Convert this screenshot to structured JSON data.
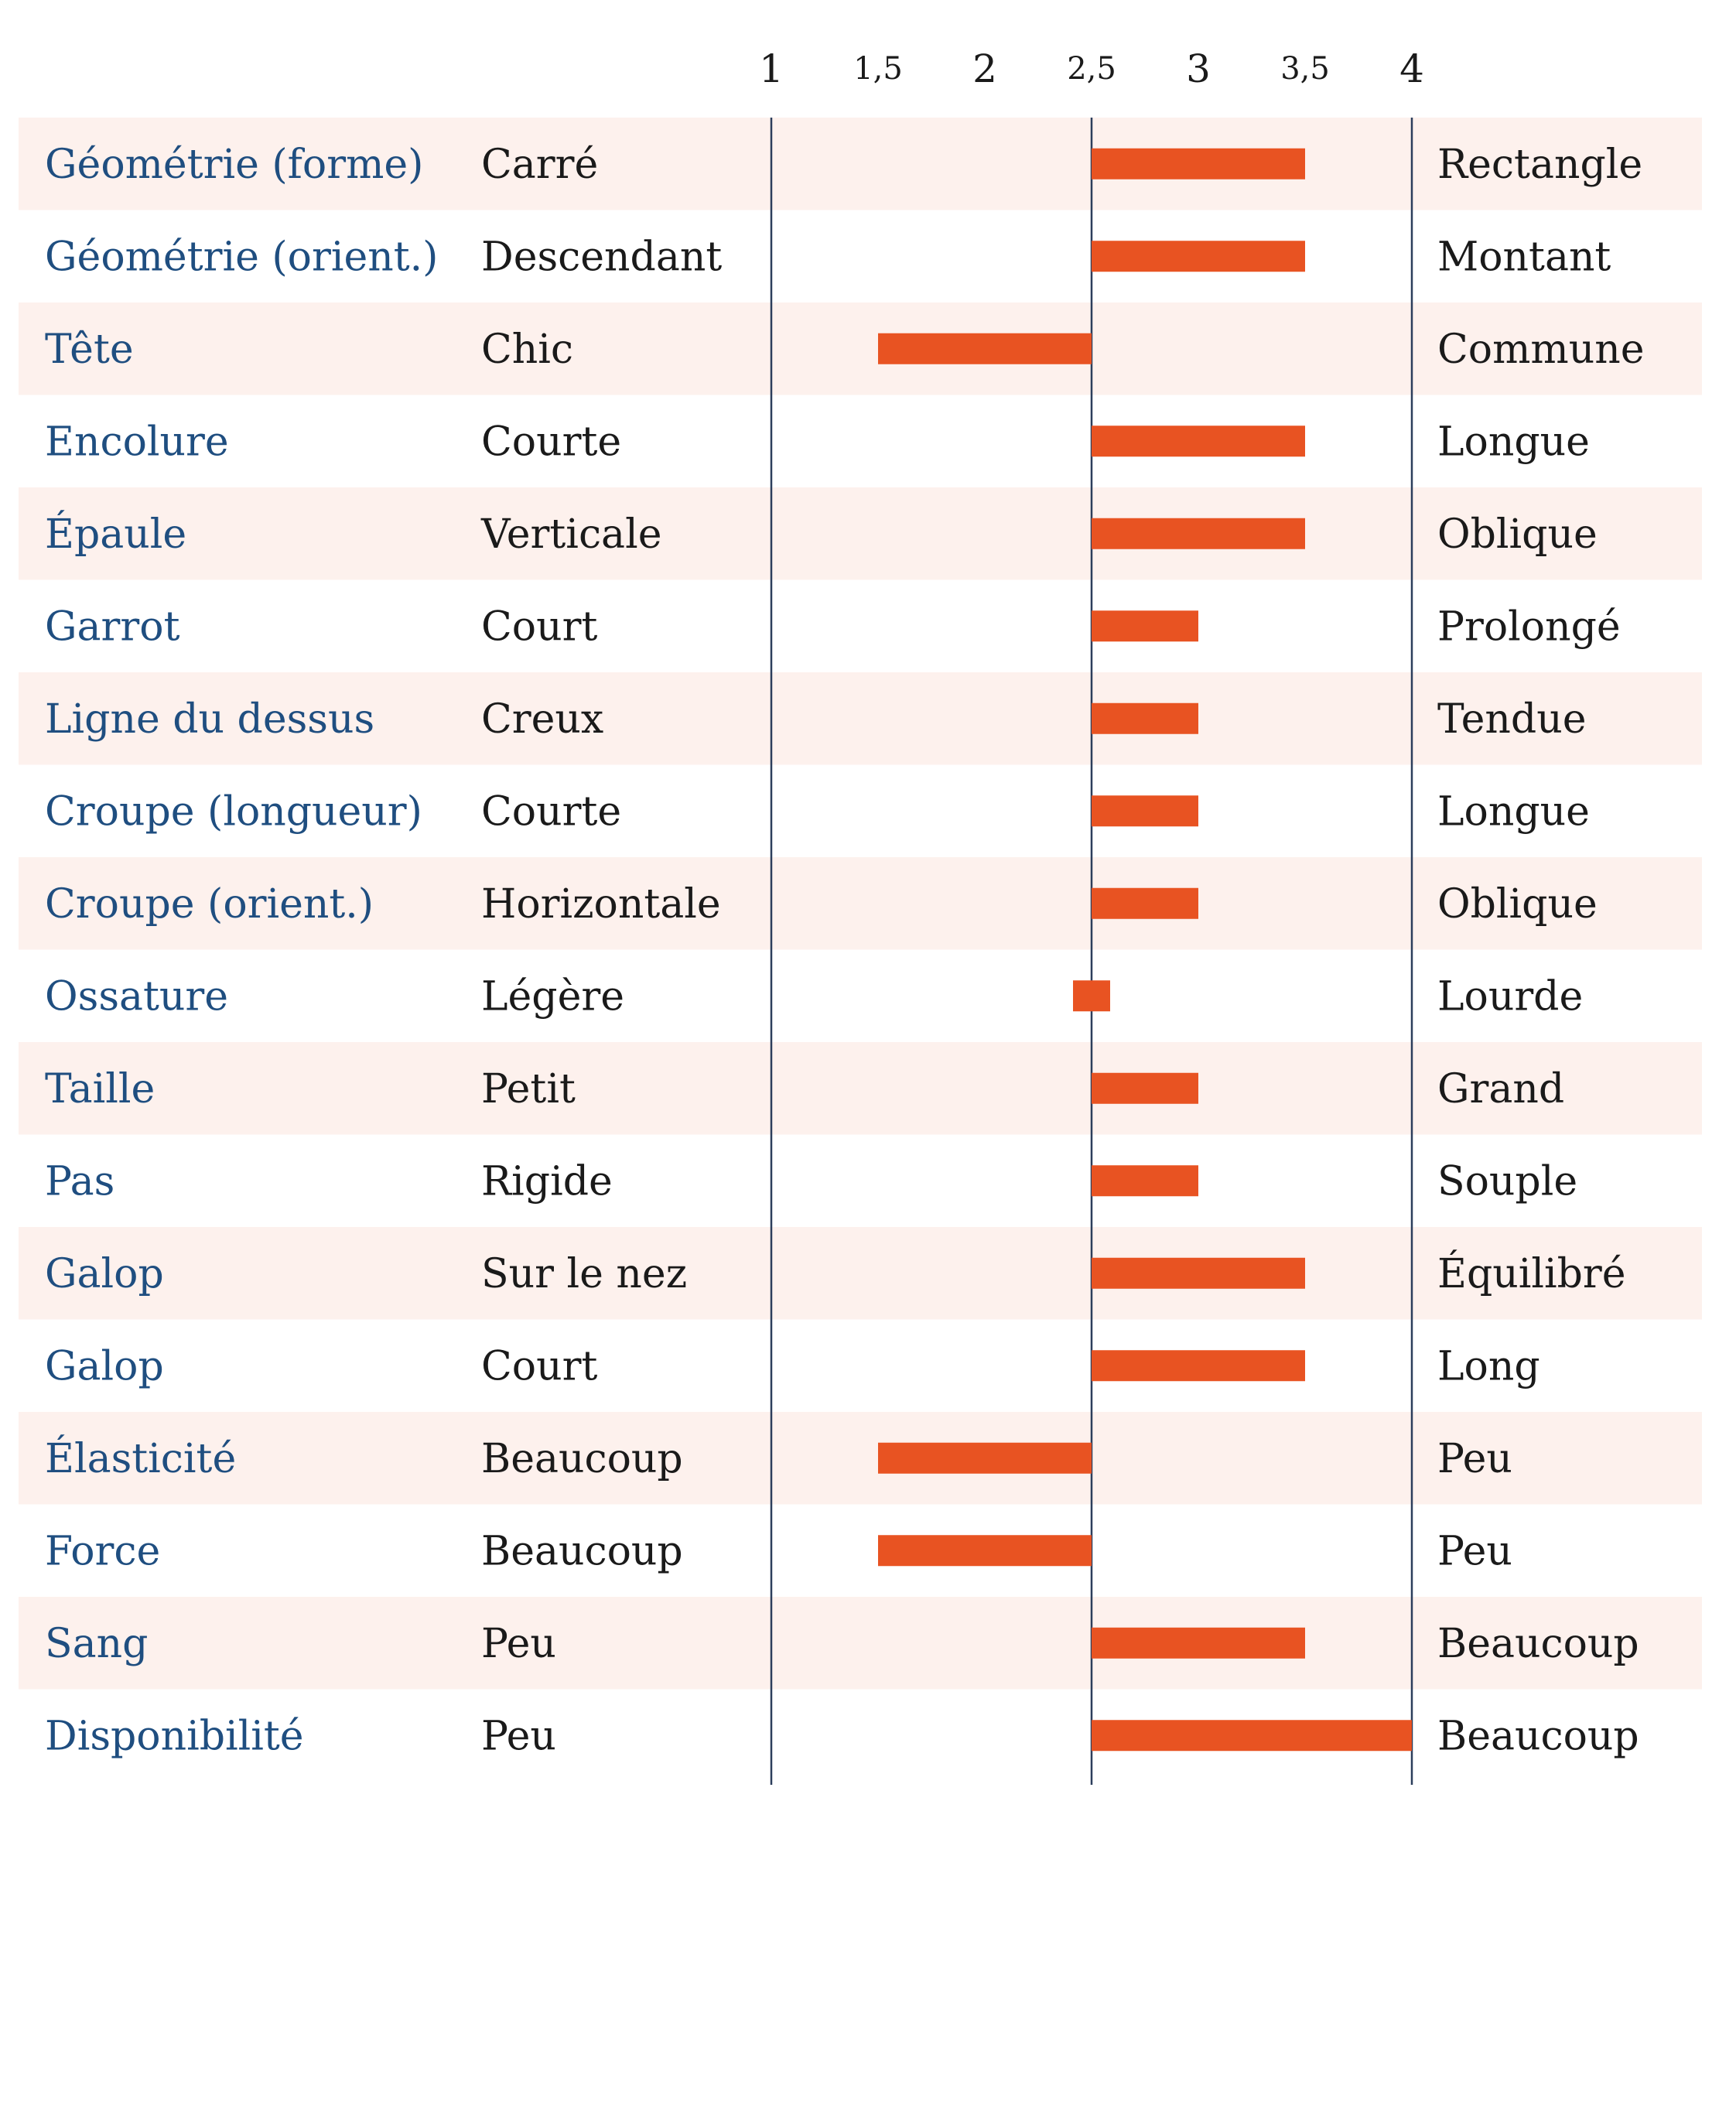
{
  "chart_data": {
    "type": "bar",
    "orientation": "horizontal",
    "baseline": 2.5,
    "xlim": [
      1,
      4
    ],
    "ticks": [
      {
        "value": 1,
        "label": "1"
      },
      {
        "value": 1.5,
        "label": "1,5"
      },
      {
        "value": 2,
        "label": "2"
      },
      {
        "value": 2.5,
        "label": "2,5"
      },
      {
        "value": 3,
        "label": "3"
      },
      {
        "value": 3.5,
        "label": "3,5"
      },
      {
        "value": 4,
        "label": "4"
      }
    ],
    "colors": {
      "bar": "#e85322",
      "stripe": "#fdf1ed",
      "axis": "#2c3e5c",
      "trait_text": "#1f4e80",
      "pole_text": "#1a1a1a"
    },
    "rows": [
      {
        "trait": "Géométrie (forme)",
        "low": "Carré",
        "high": "Rectangle",
        "value": 3.5
      },
      {
        "trait": "Géométrie (orient.)",
        "low": "Descendant",
        "high": "Montant",
        "value": 3.5
      },
      {
        "trait": "Tête",
        "low": "Chic",
        "high": "Commune",
        "value": 1.5
      },
      {
        "trait": "Encolure",
        "low": "Courte",
        "high": "Longue",
        "value": 3.5
      },
      {
        "trait": "Épaule",
        "low": "Verticale",
        "high": "Oblique",
        "value": 3.5
      },
      {
        "trait": "Garrot",
        "low": "Court",
        "high": "Prolongé",
        "value": 3.0
      },
      {
        "trait": "Ligne du dessus",
        "low": "Creux",
        "high": "Tendue",
        "value": 3.0
      },
      {
        "trait": "Croupe (longueur)",
        "low": "Courte",
        "high": "Longue",
        "value": 3.0
      },
      {
        "trait": "Croupe (orient.)",
        "low": "Horizontale",
        "high": "Oblique",
        "value": 3.0
      },
      {
        "trait": "Ossature",
        "low": "Légère",
        "high": "Lourde",
        "value": 2.5
      },
      {
        "trait": "Taille",
        "low": "Petit",
        "high": "Grand",
        "value": 3.0
      },
      {
        "trait": "Pas",
        "low": "Rigide",
        "high": "Souple",
        "value": 3.0
      },
      {
        "trait": "Galop",
        "low": "Sur le nez",
        "high": "Équilibré",
        "value": 3.5
      },
      {
        "trait": "Galop",
        "low": "Court",
        "high": "Long",
        "value": 3.5
      },
      {
        "trait": "Élasticité",
        "low": "Beaucoup",
        "high": "Peu",
        "value": 1.5
      },
      {
        "trait": "Force",
        "low": "Beaucoup",
        "high": "Peu",
        "value": 1.5
      },
      {
        "trait": "Sang",
        "low": "Peu",
        "high": "Beaucoup",
        "value": 3.5
      },
      {
        "trait": "Disponibilité",
        "low": "Peu",
        "high": "Beaucoup",
        "value": 4.0
      }
    ]
  }
}
